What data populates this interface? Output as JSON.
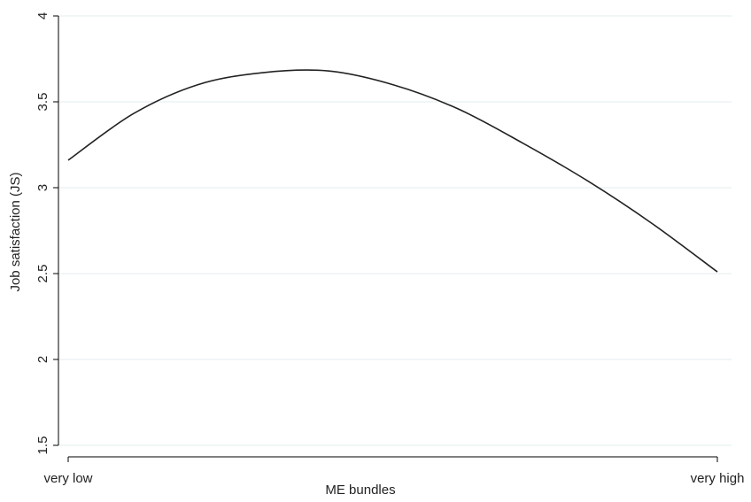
{
  "chart_data": {
    "type": "line",
    "title": "",
    "xlabel": "ME bundles",
    "ylabel": "Job satisfaction (JS)",
    "ylim": [
      1.5,
      4
    ],
    "yticks": [
      1.5,
      2,
      2.5,
      3,
      3.5,
      4
    ],
    "ytick_labels": [
      "1.5",
      "2",
      "2.5",
      "3",
      "3.5",
      "4"
    ],
    "xlim": [
      0,
      1
    ],
    "xticks": [
      0,
      1
    ],
    "xtick_labels": [
      "very low",
      "very high"
    ],
    "grid": "horizontal",
    "legend": "none",
    "series": [
      {
        "x": [
          0.0,
          0.1,
          0.2,
          0.3,
          0.4,
          0.5,
          0.6,
          0.7,
          0.8,
          0.9,
          1.0
        ],
        "values": [
          3.16,
          3.43,
          3.6,
          3.67,
          3.68,
          3.6,
          3.46,
          3.26,
          3.04,
          2.79,
          2.51
        ],
        "color": "#222222"
      }
    ]
  },
  "colors": {
    "line": "#222222",
    "grid": "#e3ecef",
    "axis": "#000000"
  }
}
